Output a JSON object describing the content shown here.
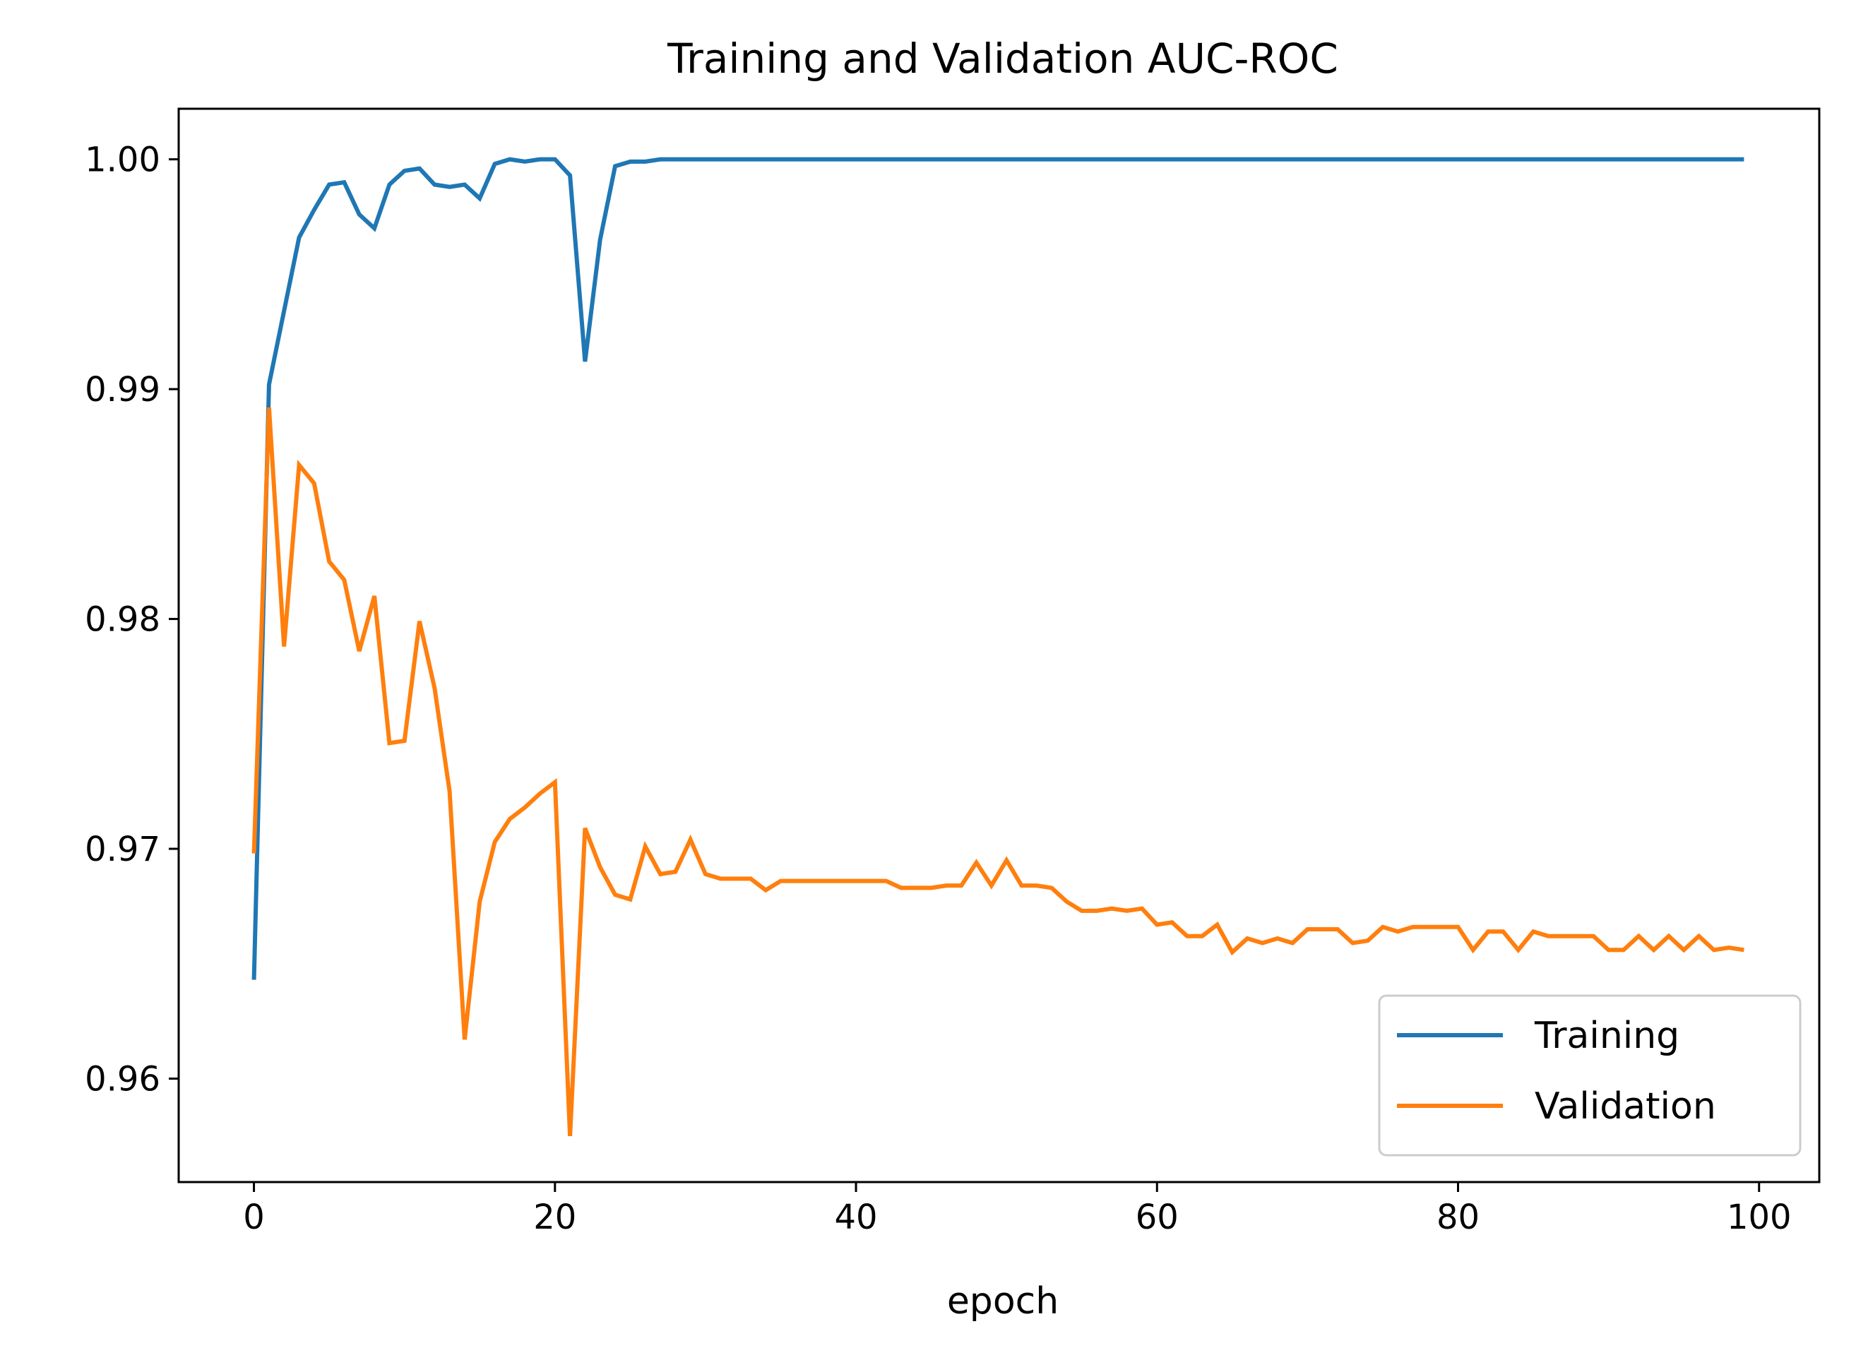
{
  "chart_data": {
    "type": "line",
    "title": "Training and Validation AUC-ROC",
    "xlabel": "epoch",
    "ylabel": "",
    "xlim": [
      -5,
      104
    ],
    "ylim": [
      0.9555,
      1.0022
    ],
    "xticks": [
      0,
      20,
      40,
      60,
      80,
      100
    ],
    "xtick_labels": [
      "0",
      "20",
      "40",
      "60",
      "80",
      "100"
    ],
    "yticks": [
      0.96,
      0.97,
      0.98,
      0.99,
      1.0
    ],
    "ytick_labels": [
      "0.96",
      "0.97",
      "0.98",
      "0.99",
      "1.00"
    ],
    "grid": false,
    "legend_position": "lower-right",
    "series": [
      {
        "name": "Training",
        "color": "#1f77b4",
        "x": [
          0,
          1,
          2,
          3,
          4,
          5,
          6,
          7,
          8,
          9,
          10,
          11,
          12,
          13,
          14,
          15,
          16,
          17,
          18,
          19,
          20,
          21,
          22,
          23,
          24,
          25,
          26,
          27,
          28,
          29,
          30,
          31,
          32,
          33,
          34,
          35,
          36,
          37,
          38,
          39,
          40,
          41,
          42,
          43,
          44,
          45,
          46,
          47,
          48,
          49,
          50,
          51,
          52,
          53,
          54,
          55,
          56,
          57,
          58,
          59,
          60,
          61,
          62,
          63,
          64,
          65,
          66,
          67,
          68,
          69,
          70,
          71,
          72,
          73,
          74,
          75,
          76,
          77,
          78,
          79,
          80,
          81,
          82,
          83,
          84,
          85,
          86,
          87,
          88,
          89,
          90,
          91,
          92,
          93,
          94,
          95,
          96,
          97,
          98,
          99
        ],
        "values": [
          0.9643,
          0.9902,
          0.9934,
          0.9966,
          0.9978,
          0.9989,
          0.999,
          0.9976,
          0.997,
          0.9989,
          0.9995,
          0.9996,
          0.9989,
          0.9988,
          0.9989,
          0.9983,
          0.9998,
          1.0,
          0.9999,
          1.0,
          1.0,
          0.9993,
          0.9912,
          0.9965,
          0.9997,
          0.9999,
          0.9999,
          1.0,
          1.0,
          1.0,
          1.0,
          1.0,
          1.0,
          1.0,
          1.0,
          1.0,
          1.0,
          1.0,
          1.0,
          1.0,
          1.0,
          1.0,
          1.0,
          1.0,
          1.0,
          1.0,
          1.0,
          1.0,
          1.0,
          1.0,
          1.0,
          1.0,
          1.0,
          1.0,
          1.0,
          1.0,
          1.0,
          1.0,
          1.0,
          1.0,
          1.0,
          1.0,
          1.0,
          1.0,
          1.0,
          1.0,
          1.0,
          1.0,
          1.0,
          1.0,
          1.0,
          1.0,
          1.0,
          1.0,
          1.0,
          1.0,
          1.0,
          1.0,
          1.0,
          1.0,
          1.0,
          1.0,
          1.0,
          1.0,
          1.0,
          1.0,
          1.0,
          1.0,
          1.0,
          1.0,
          1.0,
          1.0,
          1.0,
          1.0,
          1.0,
          1.0,
          1.0,
          1.0,
          1.0,
          1.0
        ]
      },
      {
        "name": "Validation",
        "color": "#ff7f0e",
        "x": [
          0,
          1,
          2,
          3,
          4,
          5,
          6,
          7,
          8,
          9,
          10,
          11,
          12,
          13,
          14,
          15,
          16,
          17,
          18,
          19,
          20,
          21,
          22,
          23,
          24,
          25,
          26,
          27,
          28,
          29,
          30,
          31,
          32,
          33,
          34,
          35,
          36,
          37,
          38,
          39,
          40,
          41,
          42,
          43,
          44,
          45,
          46,
          47,
          48,
          49,
          50,
          51,
          52,
          53,
          54,
          55,
          56,
          57,
          58,
          59,
          60,
          61,
          62,
          63,
          64,
          65,
          66,
          67,
          68,
          69,
          70,
          71,
          72,
          73,
          74,
          75,
          76,
          77,
          78,
          79,
          80,
          81,
          82,
          83,
          84,
          85,
          86,
          87,
          88,
          89,
          90,
          91,
          92,
          93,
          94,
          95,
          96,
          97,
          98,
          99
        ],
        "values": [
          0.9698,
          0.9892,
          0.9788,
          0.9867,
          0.9859,
          0.9825,
          0.9817,
          0.9786,
          0.981,
          0.9746,
          0.9747,
          0.9799,
          0.977,
          0.9725,
          0.9617,
          0.9677,
          0.9703,
          0.9713,
          0.9718,
          0.9724,
          0.9729,
          0.9575,
          0.9709,
          0.9692,
          0.968,
          0.9678,
          0.9701,
          0.9689,
          0.969,
          0.9704,
          0.9689,
          0.9687,
          0.9687,
          0.9687,
          0.9682,
          0.9686,
          0.9686,
          0.9686,
          0.9686,
          0.9686,
          0.9686,
          0.9686,
          0.9686,
          0.9683,
          0.9683,
          0.9683,
          0.9684,
          0.9684,
          0.9694,
          0.9684,
          0.9695,
          0.9684,
          0.9684,
          0.9683,
          0.9677,
          0.9673,
          0.9673,
          0.9674,
          0.9673,
          0.9674,
          0.9667,
          0.9668,
          0.9662,
          0.9662,
          0.9667,
          0.9655,
          0.9661,
          0.9659,
          0.9661,
          0.9659,
          0.9665,
          0.9665,
          0.9665,
          0.9659,
          0.966,
          0.9666,
          0.9664,
          0.9666,
          0.9666,
          0.9666,
          0.9666,
          0.9656,
          0.9664,
          0.9664,
          0.9656,
          0.9664,
          0.9662,
          0.9662,
          0.9662,
          0.9662,
          0.9656,
          0.9656,
          0.9662,
          0.9656,
          0.9662,
          0.9656,
          0.9662,
          0.9656,
          0.9657,
          0.9656
        ]
      }
    ]
  }
}
